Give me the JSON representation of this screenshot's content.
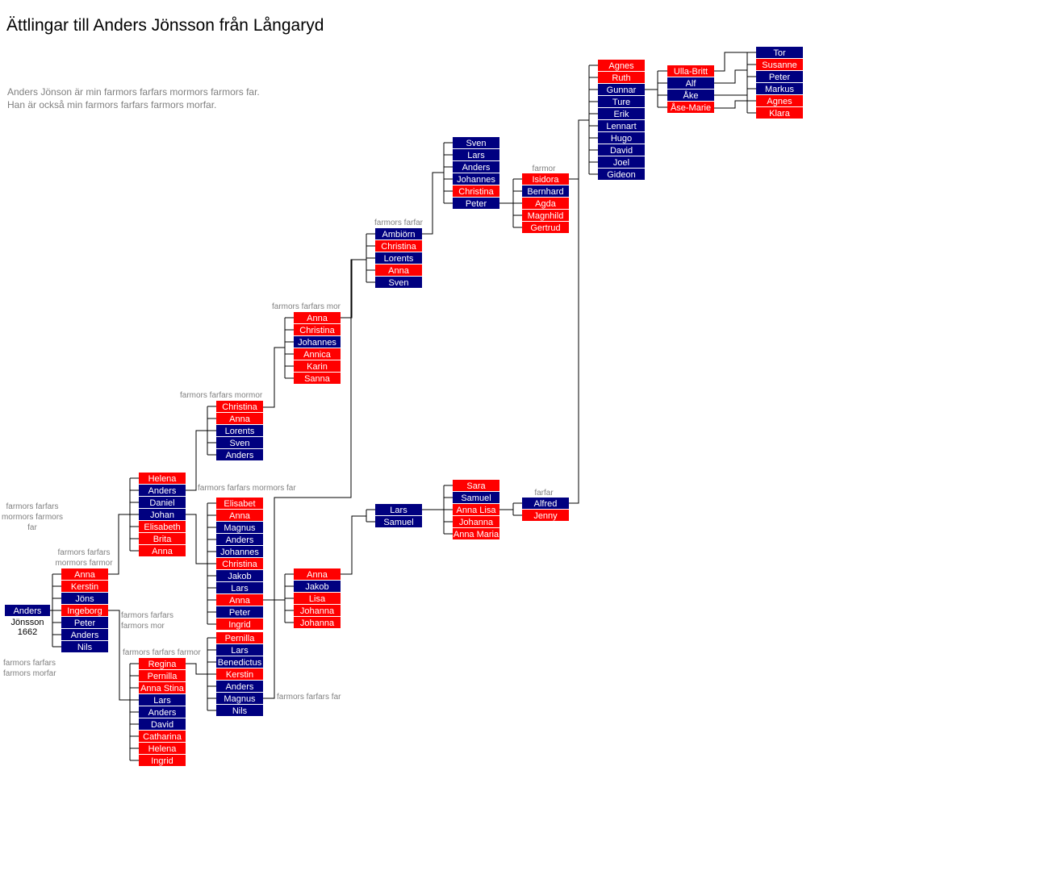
{
  "title": "Ättlingar till Anders Jönsson från Långaryd",
  "intro": [
    "Anders Jönson är min farmors farfars mormors farmors far.",
    "Han är också min farmors farfars farmors morfar."
  ],
  "colors": {
    "male": "#000080",
    "female": "#ff0000",
    "line": "#000000",
    "note": "#808080"
  },
  "root": {
    "name": "Anders",
    "sub": [
      "Jönsson",
      "1662"
    ]
  },
  "annotations": {
    "root_far": [
      "farmors farfars",
      "mormors farmors",
      "far"
    ],
    "root_morfar": [
      "farmors farfars",
      "farmors morfar"
    ],
    "farmor_anna": [
      "farmors farfars",
      "mormors farmor"
    ],
    "mor_ingeborg": [
      "farmors farfars",
      "farmors mor"
    ],
    "farmor_regina": [
      "farmors farfars farmor"
    ],
    "mor_christina": [
      "farmors farfars mormor"
    ],
    "mor_anders": [
      "farmors farfars mormors far"
    ],
    "far_magnus": [
      "farmors farfars far"
    ],
    "mor_anna": [
      "farmors farfars mor"
    ],
    "farfar_ambiorn": [
      "farmors farfar"
    ],
    "farmor_isidora": [
      "farmor"
    ],
    "farfar_alfred": [
      "farfar"
    ]
  },
  "groups": {
    "g1": [
      "Anna",
      "Kerstin",
      "Jöns",
      "Ingeborg",
      "Peter",
      "Anders",
      "Nils"
    ],
    "g2": [
      "Helena",
      "Anders",
      "Daniel",
      "Johan",
      "Elisabeth",
      "Brita",
      "Anna"
    ],
    "g3": [
      "Regina",
      "Pernilla",
      "Anna Stina",
      "Lars",
      "Anders",
      "David",
      "Catharina",
      "Helena",
      "Ingrid"
    ],
    "g4": [
      "Christina",
      "Anna",
      "Lorents",
      "Sven",
      "Anders"
    ],
    "g5": [
      "Elisabet",
      "Anna",
      "Magnus",
      "Anders",
      "Johannes",
      "Christina",
      "Jakob",
      "Lars",
      "Anna",
      "Peter",
      "Ingrid"
    ],
    "g6": [
      "Pernilla",
      "Lars",
      "Benedictus",
      "Kerstin",
      "Anders",
      "Magnus",
      "Nils"
    ],
    "g7": [
      "Anna",
      "Christina",
      "Johannes",
      "Annica",
      "Karin",
      "Sanna"
    ],
    "g8": [
      "Anna",
      "Jakob",
      "Lisa",
      "Johanna",
      "Johanna"
    ],
    "g9": [
      "Ambiörn",
      "Christina",
      "Lorents",
      "Anna",
      "Sven"
    ],
    "g10": [
      "Lars",
      "Samuel"
    ],
    "g11": [
      "Sven",
      "Lars",
      "Anders",
      "Johannes",
      "Christina",
      "Peter"
    ],
    "g12": [
      "Sara",
      "Samuel",
      "Anna Lisa",
      "Johanna",
      "Anna Maria"
    ],
    "g13": [
      "Isidora",
      "Bernhard",
      "Agda",
      "Magnhild",
      "Gertrud"
    ],
    "g14": [
      "Alfred",
      "Jenny"
    ],
    "g15": [
      "Agnes",
      "Ruth",
      "Gunnar",
      "Ture",
      "Erik",
      "Lennart",
      "Hugo",
      "David",
      "Joel",
      "Gideon"
    ],
    "g16": [
      "Ulla-Britt",
      "Alf",
      "Åke",
      "Åse-Marie"
    ],
    "g17": [
      "Tor",
      "Susanne",
      "Peter",
      "Markus",
      "Agnes",
      "Klara"
    ]
  },
  "genders": {
    "g1": "FFMFMMM",
    "g2": "FMMMFFF",
    "g3": "FFFMMMFFF",
    "g4": "FFMMM",
    "g5": "FFMMMFMMFMF",
    "g6": "FMMFMMM",
    "g7": "FFMFFF",
    "g8": "FMFFF",
    "g9": "MFMFM",
    "g10": "MM",
    "g11": "MMMMFM",
    "g12": "FMFFF",
    "g13": "FMFFF",
    "g14": "MF",
    "g15": "FFMMMMMMMM",
    "g16": "FMMF",
    "g17": "MFMMFF"
  }
}
